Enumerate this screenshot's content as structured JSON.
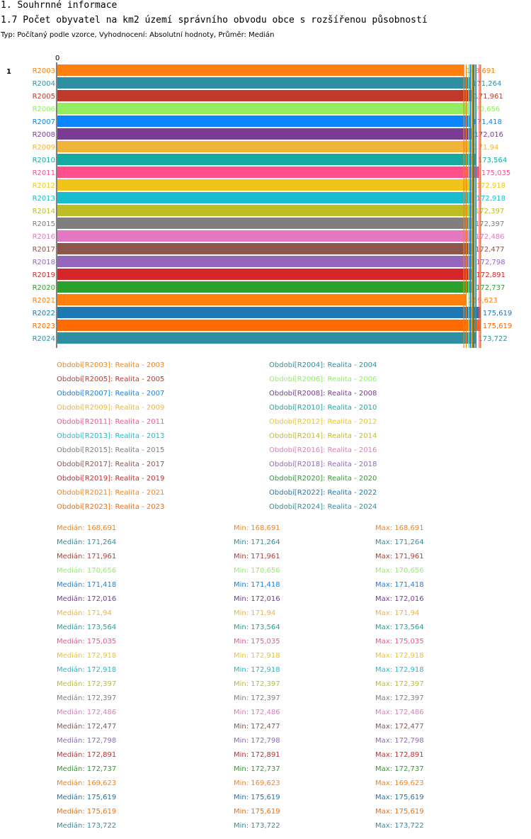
{
  "header": {
    "section": "1. Souhrnné informace",
    "title": "1.7 Počet obyvatel na km2 území správního obvodu obce s rozšířenou působností",
    "subtitle": "Typ: Počítaný podle vzorce, Vyhodnocení: Absolutní hodnoty, Průměr: Medián"
  },
  "chart_data": {
    "type": "bar",
    "orientation": "horizontal",
    "group_label": "1",
    "axis_zero_label": "0",
    "xlim": [
      0,
      175.619
    ],
    "categories": [
      "R2003",
      "R2004",
      "R2005",
      "R2006",
      "R2007",
      "R2008",
      "R2009",
      "R2010",
      "R2011",
      "R2012",
      "R2013",
      "R2014",
      "R2015",
      "R2016",
      "R2017",
      "R2018",
      "R2019",
      "R2020",
      "R2021",
      "R2022",
      "R2023",
      "R2024"
    ],
    "values": [
      168.691,
      171.264,
      171.961,
      170.656,
      171.418,
      172.016,
      171.94,
      173.564,
      175.035,
      172.918,
      172.918,
      172.397,
      172.397,
      172.486,
      172.477,
      172.798,
      172.891,
      172.737,
      169.623,
      175.619,
      175.619,
      173.722
    ],
    "value_labels": [
      "168,691",
      "171,264",
      "171,961",
      "170,656",
      "171,418",
      "172,016",
      "171,94",
      "173,564",
      "175,035",
      "172,918",
      "172,918",
      "172,397",
      "172,397",
      "172,486",
      "172,477",
      "172,798",
      "172,891",
      "172,737",
      "169,623",
      "175,619",
      "175,619",
      "173,722"
    ],
    "colors": [
      "#ff7f0e",
      "#2e8fa3",
      "#c0392b",
      "#90ee60",
      "#0a84ff",
      "#7a3b93",
      "#f0b43a",
      "#14aaa2",
      "#ff4f8a",
      "#f0c419",
      "#17becf",
      "#bcbd22",
      "#7f7f7f",
      "#e377c2",
      "#8c564b",
      "#9467bd",
      "#d62728",
      "#2ca02c",
      "#ff7f0e",
      "#1f77b4",
      "#ff6a00",
      "#2e8fa3"
    ]
  },
  "legend": {
    "items": [
      "Období[R2003]: Realita - 2003",
      "Období[R2004]: Realita - 2004",
      "Období[R2005]: Realita - 2005",
      "Období[R2006]: Realita - 2006",
      "Období[R2007]: Realita - 2007",
      "Období[R2008]: Realita - 2008",
      "Období[R2009]: Realita - 2009",
      "Období[R2010]: Realita - 2010",
      "Období[R2011]: Realita - 2011",
      "Období[R2012]: Realita - 2012",
      "Období[R2013]: Realita - 2013",
      "Období[R2014]: Realita - 2014",
      "Období[R2015]: Realita - 2015",
      "Období[R2016]: Realita - 2016",
      "Období[R2017]: Realita - 2017",
      "Období[R2018]: Realita - 2018",
      "Období[R2019]: Realita - 2019",
      "Období[R2020]: Realita - 2020",
      "Období[R2021]: Realita - 2021",
      "Období[R2022]: Realita - 2022",
      "Období[R2023]: Realita - 2023",
      "Období[R2024]: Realita - 2024"
    ]
  },
  "stats": {
    "median_prefix": "Medián: ",
    "min_prefix": "Min: ",
    "max_prefix": "Max: "
  }
}
